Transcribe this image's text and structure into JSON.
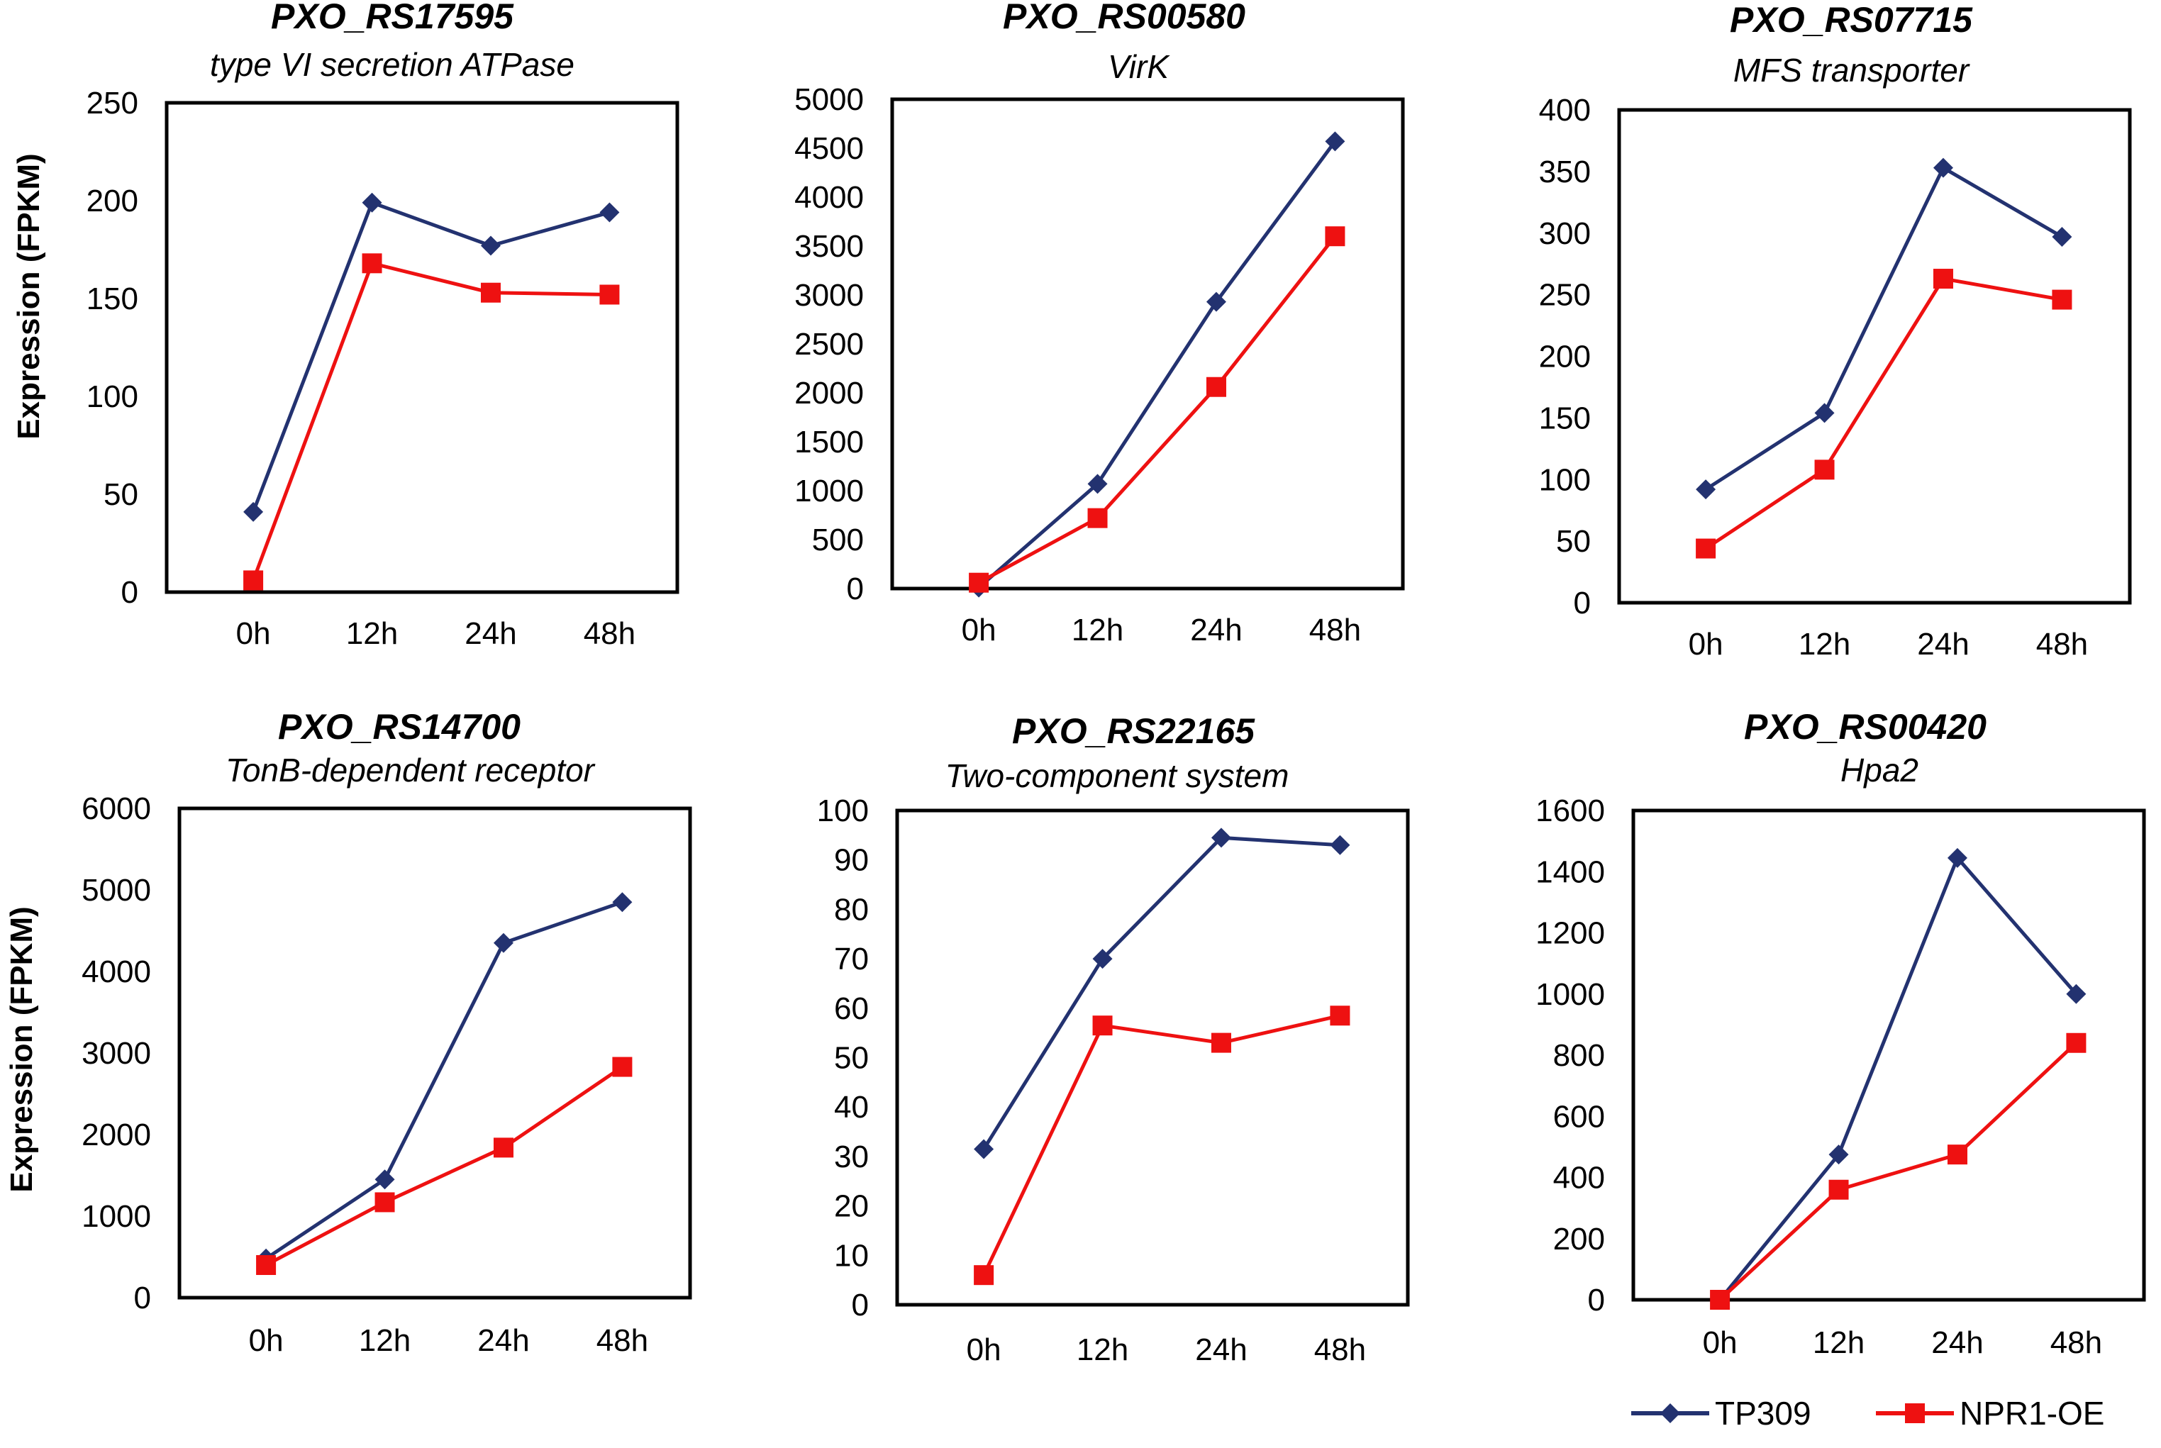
{
  "legend": {
    "items": [
      {
        "name": "TP309",
        "color": "#233270",
        "marker": "diamond"
      },
      {
        "name": "NPR1-OE",
        "color": "#ee1111",
        "marker": "square"
      }
    ]
  },
  "chart_data": [
    {
      "type": "line",
      "title": "PXO_RS17595",
      "subtitle": "type VI secretion ATPase",
      "ylabel": "Expression (FPKM)",
      "categories": [
        "0h",
        "12h",
        "24h",
        "48h"
      ],
      "ylim": [
        0,
        250
      ],
      "yticks": [
        0,
        50,
        100,
        150,
        200,
        250
      ],
      "series": [
        {
          "name": "TP309",
          "values": [
            41,
            199,
            177,
            194
          ]
        },
        {
          "name": "NPR1-OE",
          "values": [
            6,
            168,
            153,
            152
          ]
        }
      ]
    },
    {
      "type": "line",
      "title": "PXO_RS00580",
      "subtitle": "VirK",
      "ylabel": "",
      "categories": [
        "0h",
        "12h",
        "24h",
        "48h"
      ],
      "ylim": [
        0,
        5000
      ],
      "yticks": [
        0,
        500,
        1000,
        1500,
        2000,
        2500,
        3000,
        3500,
        4000,
        4500,
        5000
      ],
      "series": [
        {
          "name": "TP309",
          "values": [
            10,
            1070,
            2930,
            4570
          ]
        },
        {
          "name": "NPR1-OE",
          "values": [
            60,
            720,
            2060,
            3600
          ]
        }
      ]
    },
    {
      "type": "line",
      "title": "PXO_RS07715",
      "subtitle": "MFS transporter",
      "ylabel": "",
      "categories": [
        "0h",
        "12h",
        "24h",
        "48h"
      ],
      "ylim": [
        0,
        400
      ],
      "yticks": [
        0,
        50,
        100,
        150,
        200,
        250,
        300,
        350,
        400
      ],
      "series": [
        {
          "name": "TP309",
          "values": [
            92,
            154,
            353,
            297
          ]
        },
        {
          "name": "NPR1-OE",
          "values": [
            44,
            108,
            263,
            246
          ]
        }
      ]
    },
    {
      "type": "line",
      "title": "PXO_RS14700",
      "subtitle": "TonB-dependent receptor",
      "ylabel": "Expression (FPKM)",
      "categories": [
        "0h",
        "12h",
        "24h",
        "48h"
      ],
      "ylim": [
        0,
        6000
      ],
      "yticks": [
        0,
        1000,
        2000,
        3000,
        4000,
        5000,
        6000
      ],
      "series": [
        {
          "name": "TP309",
          "values": [
            480,
            1450,
            4350,
            4850
          ]
        },
        {
          "name": "NPR1-OE",
          "values": [
            400,
            1170,
            1840,
            2830
          ]
        }
      ]
    },
    {
      "type": "line",
      "title": "PXO_RS22165",
      "subtitle": "Two-component system",
      "ylabel": "",
      "categories": [
        "0h",
        "12h",
        "24h",
        "48h"
      ],
      "ylim": [
        0,
        100
      ],
      "yticks": [
        0,
        10,
        20,
        30,
        40,
        50,
        60,
        70,
        80,
        90,
        100
      ],
      "series": [
        {
          "name": "TP309",
          "values": [
            31.5,
            70,
            94.5,
            93
          ]
        },
        {
          "name": "NPR1-OE",
          "values": [
            6,
            56.5,
            53,
            58.5
          ]
        }
      ]
    },
    {
      "type": "line",
      "title": "PXO_RS00420",
      "subtitle": "Hpa2",
      "ylabel": "",
      "categories": [
        "0h",
        "12h",
        "24h",
        "48h"
      ],
      "ylim": [
        0,
        1600
      ],
      "yticks": [
        0,
        200,
        400,
        600,
        800,
        1000,
        1200,
        1400,
        1600
      ],
      "series": [
        {
          "name": "TP309",
          "values": [
            0,
            475,
            1445,
            1000
          ]
        },
        {
          "name": "NPR1-OE",
          "values": [
            0,
            360,
            475,
            840
          ]
        }
      ]
    }
  ]
}
